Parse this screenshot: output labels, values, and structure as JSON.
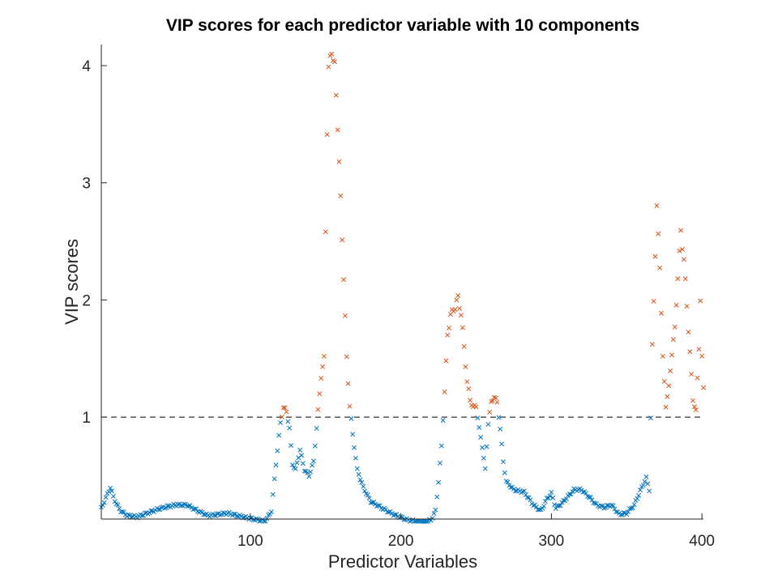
{
  "chart_data": {
    "type": "scatter",
    "title": "VIP scores for each predictor variable with 10 components",
    "xlabel": "Predictor Variables",
    "ylabel": "VIP scores",
    "xlim": [
      1,
      401
    ],
    "ylim": [
      0.13,
      4.18
    ],
    "xticks": [
      100,
      200,
      300,
      400
    ],
    "xtick_labels": [
      "100",
      "200",
      "300",
      "400"
    ],
    "yticks": [
      1,
      2,
      3,
      4
    ],
    "ytick_labels": [
      "1",
      "2",
      "3",
      "4"
    ],
    "threshold": 1,
    "marker": "x",
    "grid": false,
    "colors": {
      "below": "#0072BD",
      "above": "#D95319",
      "threshold": "#000000",
      "axis": "#262626"
    },
    "anchors": [
      [
        1,
        0.22
      ],
      [
        3,
        0.28
      ],
      [
        5,
        0.34
      ],
      [
        7,
        0.4
      ],
      [
        9,
        0.32
      ],
      [
        11,
        0.26
      ],
      [
        14,
        0.2
      ],
      [
        18,
        0.16
      ],
      [
        25,
        0.15
      ],
      [
        40,
        0.22
      ],
      [
        50,
        0.25
      ],
      [
        58,
        0.25
      ],
      [
        65,
        0.2
      ],
      [
        72,
        0.16
      ],
      [
        85,
        0.18
      ],
      [
        98,
        0.14
      ],
      [
        110,
        0.11
      ],
      [
        114,
        0.2
      ],
      [
        117,
        0.6
      ],
      [
        120,
        0.95
      ],
      [
        122,
        1.08
      ],
      [
        124,
        1.05
      ],
      [
        126,
        0.9
      ],
      [
        128,
        0.6
      ],
      [
        130,
        0.55
      ],
      [
        133,
        0.72
      ],
      [
        136,
        0.55
      ],
      [
        139,
        0.5
      ],
      [
        142,
        0.62
      ],
      [
        145,
        1.05
      ],
      [
        147,
        1.35
      ],
      [
        149,
        1.5
      ],
      [
        150,
        2.6
      ],
      [
        151,
        3.45
      ],
      [
        152,
        3.95
      ],
      [
        154,
        4.15
      ],
      [
        156,
        3.98
      ],
      [
        158,
        3.5
      ],
      [
        160,
        2.85
      ],
      [
        162,
        2.2
      ],
      [
        164,
        1.5
      ],
      [
        166,
        1.1
      ],
      [
        168,
        0.85
      ],
      [
        171,
        0.55
      ],
      [
        175,
        0.4
      ],
      [
        180,
        0.28
      ],
      [
        188,
        0.22
      ],
      [
        195,
        0.17
      ],
      [
        205,
        0.12
      ],
      [
        215,
        0.1
      ],
      [
        220,
        0.12
      ],
      [
        223,
        0.2
      ],
      [
        225,
        0.45
      ],
      [
        227,
        0.75
      ],
      [
        229,
        1.22
      ],
      [
        231,
        1.7
      ],
      [
        233,
        1.87
      ],
      [
        236,
        1.94
      ],
      [
        238,
        2.02
      ],
      [
        240,
        1.88
      ],
      [
        242,
        1.6
      ],
      [
        244,
        1.3
      ],
      [
        246,
        1.15
      ],
      [
        248,
        1.08
      ],
      [
        250,
        1.1
      ],
      [
        252,
        0.9
      ],
      [
        254,
        0.75
      ],
      [
        256,
        0.55
      ],
      [
        258,
        0.95
      ],
      [
        260,
        1.12
      ],
      [
        262,
        1.18
      ],
      [
        264,
        1.12
      ],
      [
        266,
        0.9
      ],
      [
        268,
        0.62
      ],
      [
        270,
        0.45
      ],
      [
        275,
        0.38
      ],
      [
        282,
        0.36
      ],
      [
        288,
        0.25
      ],
      [
        293,
        0.2
      ],
      [
        297,
        0.3
      ],
      [
        300,
        0.35
      ],
      [
        303,
        0.22
      ],
      [
        308,
        0.28
      ],
      [
        315,
        0.38
      ],
      [
        320,
        0.38
      ],
      [
        325,
        0.32
      ],
      [
        330,
        0.25
      ],
      [
        335,
        0.23
      ],
      [
        340,
        0.25
      ],
      [
        345,
        0.17
      ],
      [
        350,
        0.18
      ],
      [
        355,
        0.25
      ],
      [
        360,
        0.4
      ],
      [
        363,
        0.48
      ],
      [
        365,
        0.38
      ],
      [
        367,
        1.6
      ],
      [
        369,
        2.4
      ],
      [
        370,
        2.78
      ],
      [
        372,
        2.3
      ],
      [
        374,
        1.5
      ],
      [
        376,
        1.1
      ],
      [
        378,
        1.25
      ],
      [
        380,
        1.55
      ],
      [
        382,
        1.75
      ],
      [
        384,
        2.2
      ],
      [
        386,
        2.58
      ],
      [
        388,
        2.35
      ],
      [
        390,
        1.95
      ],
      [
        392,
        1.55
      ],
      [
        394,
        1.15
      ],
      [
        396,
        1.05
      ],
      [
        398,
        1.6
      ],
      [
        399,
        2.0
      ],
      [
        400,
        1.5
      ],
      [
        401,
        1.25
      ]
    ]
  }
}
